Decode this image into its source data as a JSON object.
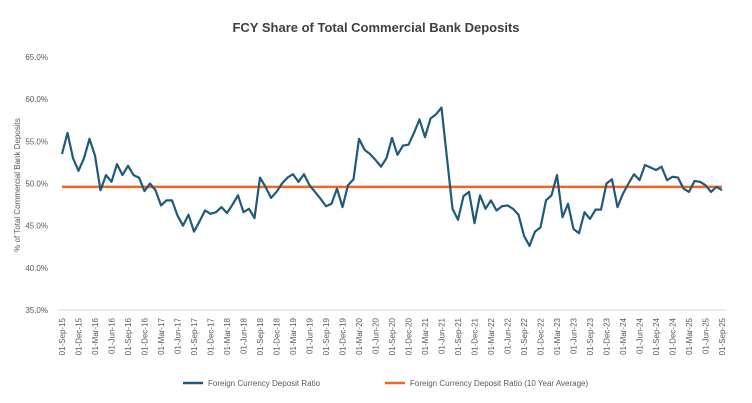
{
  "chart_data": {
    "type": "line",
    "title": "FCY Share of Total Commercial Bank Deposits",
    "y_label": "% of Total Commercial Bank Deposits",
    "categories": [
      "01-Sep-15",
      null,
      null,
      "01-Dec-15",
      null,
      null,
      "01-Mar-16",
      null,
      null,
      "01-Jun-16",
      null,
      null,
      "01-Sep-16",
      null,
      null,
      "01-Dec-16",
      null,
      null,
      "01-Mar-17",
      null,
      null,
      "01-Jun-17",
      null,
      null,
      "01-Sep-17",
      null,
      null,
      "01-Dec-17",
      null,
      null,
      "01-Mar-18",
      null,
      null,
      "01-Jun-18",
      null,
      null,
      "01-Sep-18",
      null,
      null,
      "01-Dec-18",
      null,
      null,
      "01-Mar-19",
      null,
      null,
      "01-Jun-19",
      null,
      null,
      "01-Sep-19",
      null,
      null,
      "01-Dec-19",
      null,
      null,
      "01-Mar-20",
      null,
      null,
      "01-Jun-20",
      null,
      null,
      "01-Sep-20",
      null,
      null,
      "01-Dec-20",
      null,
      null,
      "01-Mar-21",
      null,
      null,
      "01-Jun-21",
      null,
      null,
      "01-Sep-21",
      null,
      null,
      "01-Dec-21",
      null,
      null,
      "01-Mar-22",
      null,
      null,
      "01-Jun-22",
      null,
      null,
      "01-Sep-22",
      null,
      null,
      "01-Dec-22",
      null,
      null,
      "01-Mar-23",
      null,
      null,
      "01-Jun-23",
      null,
      null,
      "01-Sep-23",
      null,
      null,
      "01-Dec-23",
      null,
      null,
      "01-Mar-24",
      null,
      null,
      "01-Jun-24",
      null,
      null,
      "01-Sep-24",
      null,
      null,
      "01-Dec-24",
      null,
      null,
      "01-Mar-25",
      null,
      null,
      "01-Jun-25",
      null,
      null,
      "01-Sep-25"
    ],
    "series": [
      {
        "name": "Foreign Currency Deposit Ratio",
        "color": "#1f5a7a",
        "values": [
          53.5,
          56,
          53,
          51.5,
          53,
          55.3,
          53.3,
          49.2,
          51,
          50.2,
          52.3,
          51,
          52.1,
          51,
          50.7,
          49.1,
          50,
          49.2,
          47.4,
          48,
          48,
          46.2,
          45,
          46.3,
          44.3,
          45.5,
          46.8,
          46.4,
          46.6,
          47.2,
          46.5,
          47.5,
          48.6,
          46.6,
          47,
          45.9,
          50.7,
          49.6,
          48.3,
          49,
          50,
          50.7,
          51.1,
          50.2,
          51.1,
          49.8,
          49,
          48.2,
          47.3,
          47.6,
          49.4,
          47.2,
          49.8,
          50.5,
          55.3,
          54,
          53.5,
          52.8,
          52,
          53,
          55.4,
          53.4,
          54.5,
          54.6,
          56,
          57.6,
          55.5,
          57.7,
          58.2,
          59,
          53,
          47,
          45.7,
          48.5,
          49,
          45.3,
          48.6,
          47,
          48,
          46.8,
          47.3,
          47.4,
          47,
          46.3,
          43.8,
          42.6,
          44.3,
          44.8,
          48,
          48.6,
          51,
          46,
          47.6,
          44.6,
          44.1,
          46.6,
          45.8,
          46.9,
          46.9,
          50,
          50.5,
          47.2,
          48.8,
          50,
          51.1,
          50.4,
          52.2,
          51.9,
          51.6,
          52,
          50.4,
          50.8,
          50.7,
          49.4,
          49,
          50.3,
          50.2,
          49.8,
          49,
          49.6,
          49.2
        ]
      },
      {
        "name": "Foreign Currency Deposit Ratio (10 Year Average)",
        "color": "#f26522",
        "values": [
          49.6,
          49.6,
          49.6,
          49.6,
          49.6,
          49.6,
          49.6,
          49.6,
          49.6,
          49.6,
          49.6,
          49.6,
          49.6,
          49.6,
          49.6,
          49.6,
          49.6,
          49.6,
          49.6,
          49.6,
          49.6,
          49.6,
          49.6,
          49.6,
          49.6,
          49.6,
          49.6,
          49.6,
          49.6,
          49.6,
          49.6,
          49.6,
          49.6,
          49.6,
          49.6,
          49.6,
          49.6,
          49.6,
          49.6,
          49.6,
          49.6,
          49.6,
          49.6,
          49.6,
          49.6,
          49.6,
          49.6,
          49.6,
          49.6,
          49.6,
          49.6,
          49.6,
          49.6,
          49.6,
          49.6,
          49.6,
          49.6,
          49.6,
          49.6,
          49.6,
          49.6,
          49.6,
          49.6,
          49.6,
          49.6,
          49.6,
          49.6,
          49.6,
          49.6,
          49.6,
          49.6,
          49.6,
          49.6,
          49.6,
          49.6,
          49.6,
          49.6,
          49.6,
          49.6,
          49.6,
          49.6,
          49.6,
          49.6,
          49.6,
          49.6,
          49.6,
          49.6,
          49.6,
          49.6,
          49.6,
          49.6,
          49.6,
          49.6,
          49.6,
          49.6,
          49.6,
          49.6,
          49.6,
          49.6,
          49.6,
          49.6,
          49.6,
          49.6,
          49.6,
          49.6,
          49.6,
          49.6,
          49.6,
          49.6,
          49.6,
          49.6,
          49.6,
          49.6,
          49.6,
          49.6,
          49.6,
          49.6,
          49.6,
          49.6,
          49.6,
          49.6
        ]
      }
    ],
    "ylim": [
      35,
      65
    ],
    "yticks": [
      {
        "value": 35,
        "label": "35.0%"
      },
      {
        "value": 40,
        "label": "40.0%"
      },
      {
        "value": 45,
        "label": "45.0%"
      },
      {
        "value": 50,
        "label": "50.0%"
      },
      {
        "value": 55,
        "label": "55.0%"
      },
      {
        "value": 60,
        "label": "60.0%"
      },
      {
        "value": 65,
        "label": "65.0%"
      }
    ],
    "grid": false,
    "legend": "bottom"
  }
}
